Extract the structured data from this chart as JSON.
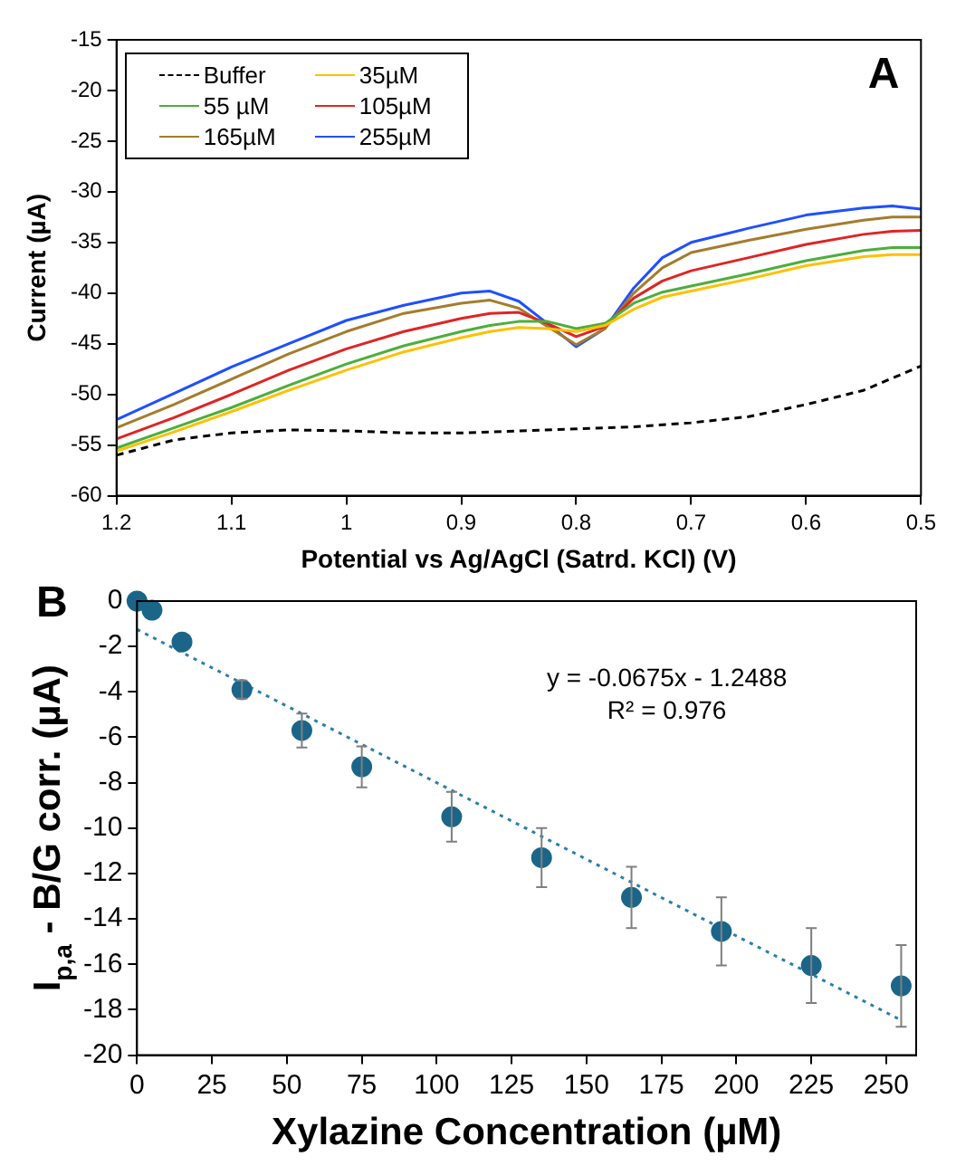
{
  "chart_data": [
    {
      "type": "line",
      "xlabel": "Potential vs Ag/AgCl (Satrd. KCl) (V)",
      "ylabel": "Current (µA)",
      "annotations": [
        "A"
      ],
      "x": [
        1.2,
        1.15,
        1.1,
        1.05,
        1.0,
        0.95,
        0.9,
        0.875,
        0.85,
        0.825,
        0.8,
        0.775,
        0.75,
        0.725,
        0.7,
        0.65,
        0.6,
        0.55,
        0.525,
        0.5
      ],
      "series": [
        {
          "name": "Buffer",
          "color": "#000000",
          "line_style": "dashed",
          "x": [
            1.2,
            1.15,
            1.1,
            1.05,
            1.0,
            0.95,
            0.9,
            0.85,
            0.8,
            0.75,
            0.7,
            0.65,
            0.6,
            0.55,
            0.5
          ],
          "values": [
            -56,
            -54.5,
            -53.8,
            -53.5,
            -53.6,
            -53.8,
            -53.8,
            -53.6,
            -53.4,
            -53.2,
            -52.8,
            -52.2,
            -51,
            -49.6,
            -47.2
          ]
        },
        {
          "name": "35µM",
          "color": "#ffc000",
          "values": [
            -55.6,
            -53.7,
            -51.7,
            -49.6,
            -47.6,
            -45.8,
            -44.4,
            -43.8,
            -43.4,
            -43.5,
            -43.8,
            -43.2,
            -41.6,
            -40.4,
            -39.8,
            -38.6,
            -37.3,
            -36.4,
            -36.2,
            -36.2
          ]
        },
        {
          "name": "55 µM",
          "color": "#4caf3a",
          "values": [
            -55.3,
            -53.3,
            -51.3,
            -49.1,
            -47,
            -45.2,
            -43.8,
            -43.2,
            -42.8,
            -42.8,
            -43.5,
            -43,
            -41,
            -39.9,
            -39.3,
            -38.1,
            -36.8,
            -35.8,
            -35.5,
            -35.5
          ]
        },
        {
          "name": "105µM",
          "color": "#e02424",
          "values": [
            -54.4,
            -52.3,
            -50,
            -47.6,
            -45.5,
            -43.8,
            -42.5,
            -42,
            -41.9,
            -43,
            -44.3,
            -43.3,
            -40.5,
            -38.8,
            -37.8,
            -36.5,
            -35.2,
            -34.2,
            -33.9,
            -33.8
          ]
        },
        {
          "name": "165µM",
          "color": "#a47c2c",
          "values": [
            -53.3,
            -51,
            -48.5,
            -46,
            -43.8,
            -42,
            -41,
            -40.7,
            -41.5,
            -43.3,
            -45.1,
            -43.5,
            -40,
            -37.5,
            -36,
            -34.8,
            -33.7,
            -32.8,
            -32.5,
            -32.5
          ]
        },
        {
          "name": "255µM",
          "color": "#1f4fff",
          "values": [
            -52.5,
            -49.9,
            -47.3,
            -45,
            -42.7,
            -41.2,
            -40,
            -39.8,
            -40.8,
            -43,
            -45.3,
            -43.5,
            -39.5,
            -36.5,
            -35,
            -33.6,
            -32.3,
            -31.6,
            -31.4,
            -31.7
          ]
        }
      ],
      "xlim": [
        1.2,
        0.5
      ],
      "xticks": [
        1.2,
        1.1,
        1,
        0.9,
        0.8,
        0.7,
        0.6,
        0.5
      ],
      "ylim": [
        -60,
        -15
      ],
      "yticks": [
        -60,
        -55,
        -50,
        -45,
        -40,
        -35,
        -30,
        -25,
        -20,
        -15
      ],
      "legend": "top left"
    },
    {
      "type": "scatter",
      "xlabel": "Xylazine Concentration (µM)",
      "ylabel": "I$_{p,a}$ - B/G corr. (µA)",
      "annotations": [
        "B",
        "y = -0.0675x - 1.2488",
        "R² = 0.976"
      ],
      "series": [
        {
          "color": "#1b6589",
          "marker": "circle",
          "x": [
            0,
            5,
            15,
            35,
            55,
            75,
            105,
            135,
            165,
            195,
            225,
            255
          ],
          "values": [
            0,
            -0.4,
            -1.8,
            -3.9,
            -5.7,
            -7.3,
            -9.5,
            -11.3,
            -13.05,
            -14.55,
            -16.05,
            -16.95
          ],
          "errors": [
            null,
            null,
            null,
            0.4,
            0.75,
            0.9,
            1.1,
            1.3,
            1.35,
            1.5,
            1.65,
            1.8
          ]
        },
        {
          "type": "line",
          "color": "#2b7fa6",
          "line_style": "dotted",
          "x": [
            0,
            255
          ],
          "values": [
            -1.25,
            -18.46
          ]
        }
      ],
      "xlim": [
        0,
        260
      ],
      "xticks": [
        0,
        25,
        50,
        75,
        100,
        125,
        150,
        175,
        200,
        225,
        250
      ],
      "ylim": [
        -20,
        0
      ],
      "yticks": [
        -20,
        -18,
        -16,
        -14,
        -12,
        -10,
        -8,
        -6,
        -4,
        -2,
        0
      ],
      "legend": false
    }
  ]
}
